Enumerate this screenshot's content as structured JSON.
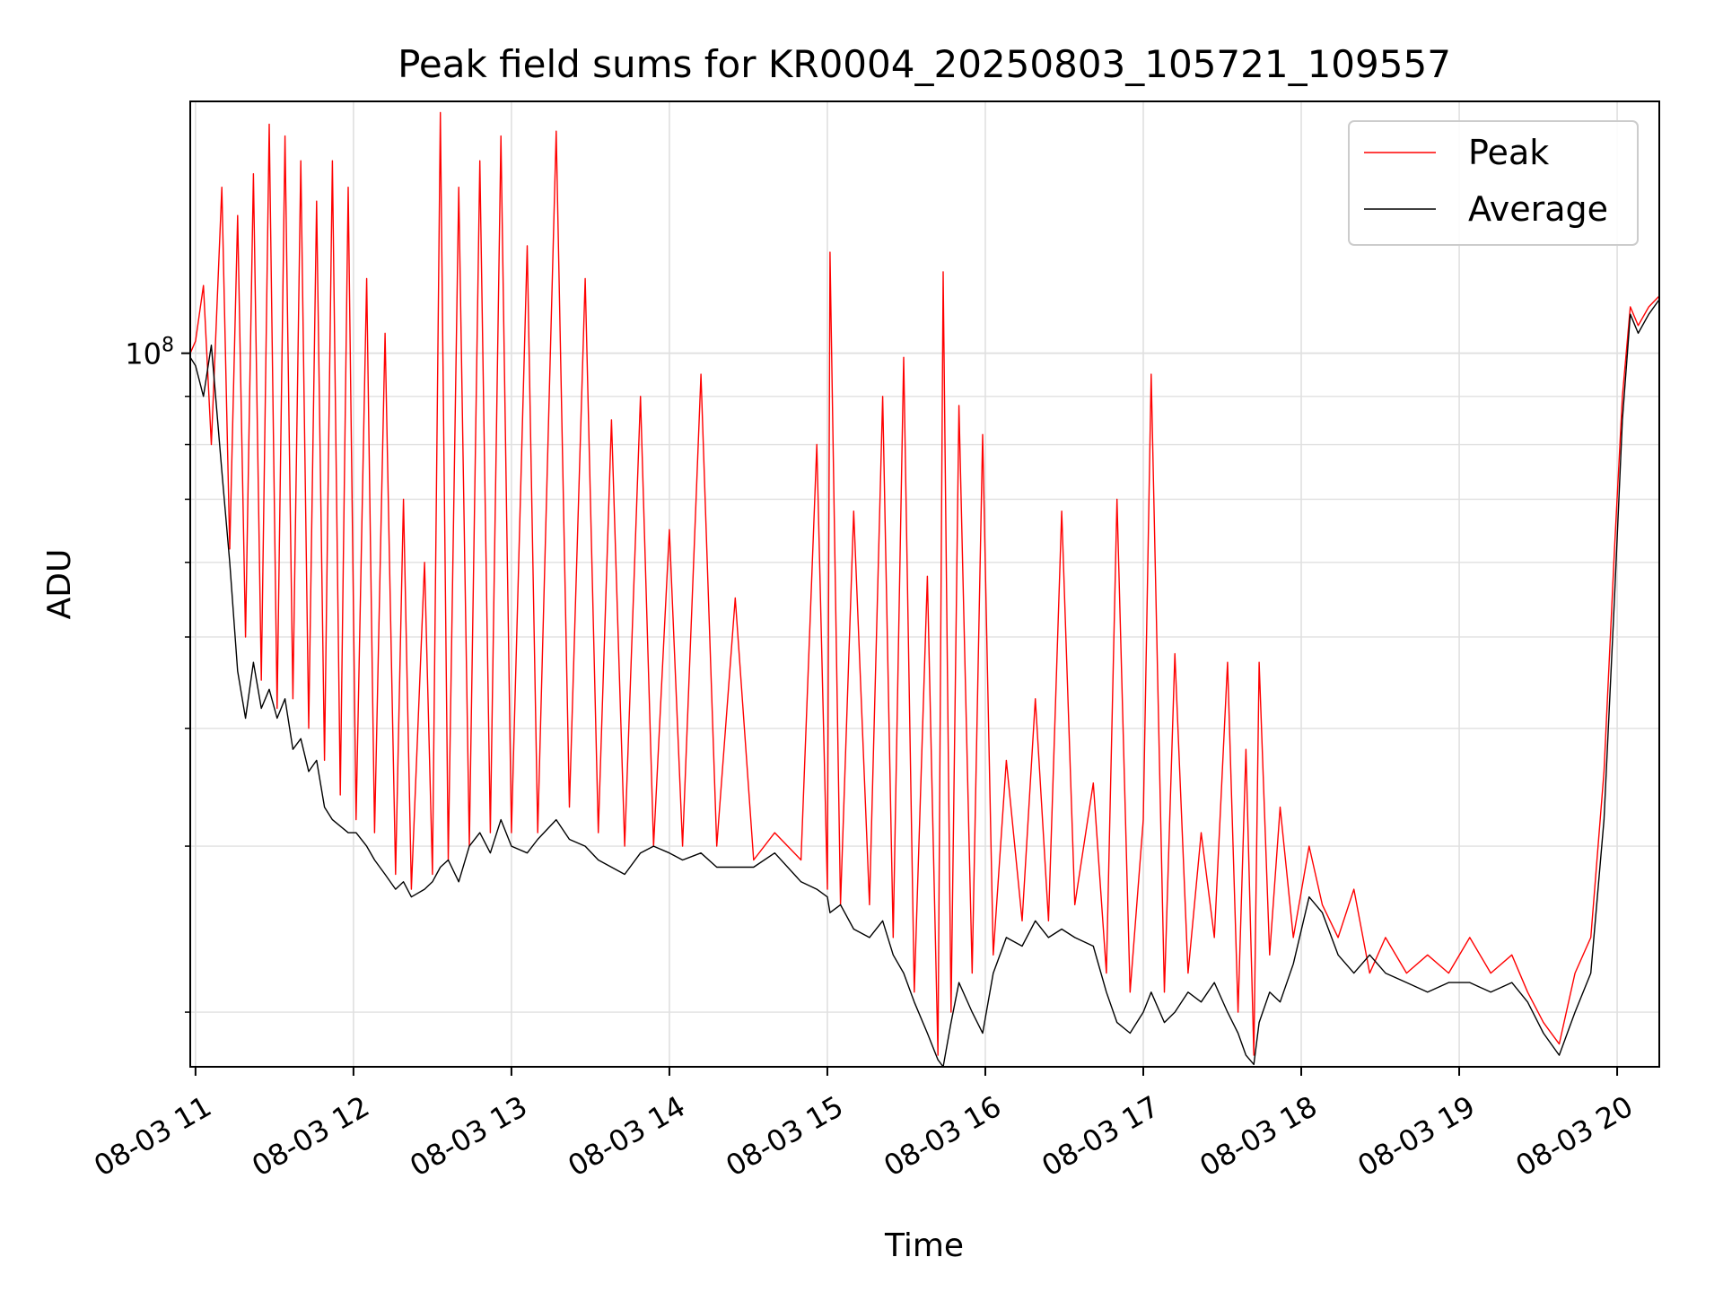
{
  "chart_data": {
    "type": "line",
    "title": "Peak field sums for KR0004_20250803_105721_109557",
    "xlabel": "Time",
    "ylabel": "ADU",
    "y_scale": "log",
    "ylim": [
      17500000,
      185000000
    ],
    "xlim": [
      "08-03 10:58",
      "08-03 20:16"
    ],
    "grid": true,
    "legend_position": "top-right",
    "x_ticks": [
      "08-03 11",
      "08-03 12",
      "08-03 13",
      "08-03 14",
      "08-03 15",
      "08-03 16",
      "08-03 17",
      "08-03 18",
      "08-03 19",
      "08-03 20"
    ],
    "y_tick_major_label": "10^8",
    "colors": {
      "peak": "#ff0000",
      "average": "#000000",
      "grid": "#e0e0e0"
    },
    "series": [
      {
        "name": "Peak",
        "points": [
          [
            "08-03 10:58",
            100000000
          ],
          [
            "08-03 11:00",
            103000000
          ],
          [
            "08-03 11:03",
            118000000
          ],
          [
            "08-03 11:06",
            80000000
          ],
          [
            "08-03 11:10",
            150000000
          ],
          [
            "08-03 11:13",
            62000000
          ],
          [
            "08-03 11:16",
            140000000
          ],
          [
            "08-03 11:19",
            50000000
          ],
          [
            "08-03 11:22",
            155000000
          ],
          [
            "08-03 11:25",
            45000000
          ],
          [
            "08-03 11:28",
            175000000
          ],
          [
            "08-03 11:31",
            42000000
          ],
          [
            "08-03 11:34",
            170000000
          ],
          [
            "08-03 11:37",
            43000000
          ],
          [
            "08-03 11:40",
            160000000
          ],
          [
            "08-03 11:43",
            40000000
          ],
          [
            "08-03 11:46",
            145000000
          ],
          [
            "08-03 11:49",
            37000000
          ],
          [
            "08-03 11:52",
            160000000
          ],
          [
            "08-03 11:55",
            34000000
          ],
          [
            "08-03 11:58",
            150000000
          ],
          [
            "08-03 12:01",
            32000000
          ],
          [
            "08-03 12:05",
            120000000
          ],
          [
            "08-03 12:08",
            31000000
          ],
          [
            "08-03 12:12",
            105000000
          ],
          [
            "08-03 12:16",
            28000000
          ],
          [
            "08-03 12:19",
            70000000
          ],
          [
            "08-03 12:22",
            27000000
          ],
          [
            "08-03 12:27",
            60000000
          ],
          [
            "08-03 12:30",
            28000000
          ],
          [
            "08-03 12:33",
            180000000
          ],
          [
            "08-03 12:36",
            29000000
          ],
          [
            "08-03 12:40",
            150000000
          ],
          [
            "08-03 12:44",
            30000000
          ],
          [
            "08-03 12:48",
            160000000
          ],
          [
            "08-03 12:52",
            31000000
          ],
          [
            "08-03 12:56",
            170000000
          ],
          [
            "08-03 13:00",
            31000000
          ],
          [
            "08-03 13:06",
            130000000
          ],
          [
            "08-03 13:10",
            31000000
          ],
          [
            "08-03 13:17",
            172000000
          ],
          [
            "08-03 13:22",
            33000000
          ],
          [
            "08-03 13:28",
            120000000
          ],
          [
            "08-03 13:33",
            31000000
          ],
          [
            "08-03 13:38",
            85000000
          ],
          [
            "08-03 13:43",
            30000000
          ],
          [
            "08-03 13:49",
            90000000
          ],
          [
            "08-03 13:54",
            30000000
          ],
          [
            "08-03 14:00",
            65000000
          ],
          [
            "08-03 14:05",
            30000000
          ],
          [
            "08-03 14:12",
            95000000
          ],
          [
            "08-03 14:18",
            30000000
          ],
          [
            "08-03 14:25",
            55000000
          ],
          [
            "08-03 14:32",
            29000000
          ],
          [
            "08-03 14:40",
            31000000
          ],
          [
            "08-03 14:50",
            29000000
          ],
          [
            "08-03 14:56",
            80000000
          ],
          [
            "08-03 15:00",
            27000000
          ],
          [
            "08-03 15:01",
            128000000
          ],
          [
            "08-03 15:05",
            26000000
          ],
          [
            "08-03 15:10",
            68000000
          ],
          [
            "08-03 15:16",
            26000000
          ],
          [
            "08-03 15:21",
            90000000
          ],
          [
            "08-03 15:25",
            24000000
          ],
          [
            "08-03 15:29",
            99000000
          ],
          [
            "08-03 15:33",
            21000000
          ],
          [
            "08-03 15:38",
            58000000
          ],
          [
            "08-03 15:42",
            18000000
          ],
          [
            "08-03 15:44",
            122000000
          ],
          [
            "08-03 15:47",
            20000000
          ],
          [
            "08-03 15:50",
            88000000
          ],
          [
            "08-03 15:55",
            22000000
          ],
          [
            "08-03 15:59",
            82000000
          ],
          [
            "08-03 16:03",
            23000000
          ],
          [
            "08-03 16:08",
            37000000
          ],
          [
            "08-03 16:14",
            25000000
          ],
          [
            "08-03 16:19",
            43000000
          ],
          [
            "08-03 16:24",
            25000000
          ],
          [
            "08-03 16:29",
            68000000
          ],
          [
            "08-03 16:34",
            26000000
          ],
          [
            "08-03 16:41",
            35000000
          ],
          [
            "08-03 16:46",
            22000000
          ],
          [
            "08-03 16:50",
            70000000
          ],
          [
            "08-03 16:55",
            21000000
          ],
          [
            "08-03 17:00",
            32000000
          ],
          [
            "08-03 17:03",
            95000000
          ],
          [
            "08-03 17:08",
            21000000
          ],
          [
            "08-03 17:12",
            48000000
          ],
          [
            "08-03 17:17",
            22000000
          ],
          [
            "08-03 17:22",
            31000000
          ],
          [
            "08-03 17:27",
            24000000
          ],
          [
            "08-03 17:32",
            47000000
          ],
          [
            "08-03 17:36",
            20000000
          ],
          [
            "08-03 17:39",
            38000000
          ],
          [
            "08-03 17:42",
            18000000
          ],
          [
            "08-03 17:44",
            47000000
          ],
          [
            "08-03 17:48",
            23000000
          ],
          [
            "08-03 17:52",
            33000000
          ],
          [
            "08-03 17:57",
            24000000
          ],
          [
            "08-03 18:03",
            30000000
          ],
          [
            "08-03 18:08",
            26000000
          ],
          [
            "08-03 18:14",
            24000000
          ],
          [
            "08-03 18:20",
            27000000
          ],
          [
            "08-03 18:26",
            22000000
          ],
          [
            "08-03 18:32",
            24000000
          ],
          [
            "08-03 18:40",
            22000000
          ],
          [
            "08-03 18:48",
            23000000
          ],
          [
            "08-03 18:56",
            22000000
          ],
          [
            "08-03 19:04",
            24000000
          ],
          [
            "08-03 19:12",
            22000000
          ],
          [
            "08-03 19:20",
            23000000
          ],
          [
            "08-03 19:26",
            21000000
          ],
          [
            "08-03 19:32",
            19500000
          ],
          [
            "08-03 19:38",
            18500000
          ],
          [
            "08-03 19:44",
            22000000
          ],
          [
            "08-03 19:50",
            24000000
          ],
          [
            "08-03 19:55",
            36000000
          ],
          [
            "08-03 19:59",
            62000000
          ],
          [
            "08-03 20:02",
            90000000
          ],
          [
            "08-03 20:05",
            112000000
          ],
          [
            "08-03 20:08",
            107000000
          ],
          [
            "08-03 20:12",
            112000000
          ],
          [
            "08-03 20:16",
            115000000
          ]
        ]
      },
      {
        "name": "Average",
        "points": [
          [
            "08-03 10:58",
            99000000
          ],
          [
            "08-03 11:00",
            97000000
          ],
          [
            "08-03 11:03",
            90000000
          ],
          [
            "08-03 11:06",
            102000000
          ],
          [
            "08-03 11:10",
            75000000
          ],
          [
            "08-03 11:13",
            60000000
          ],
          [
            "08-03 11:16",
            46000000
          ],
          [
            "08-03 11:19",
            41000000
          ],
          [
            "08-03 11:22",
            47000000
          ],
          [
            "08-03 11:25",
            42000000
          ],
          [
            "08-03 11:28",
            44000000
          ],
          [
            "08-03 11:31",
            41000000
          ],
          [
            "08-03 11:34",
            43000000
          ],
          [
            "08-03 11:37",
            38000000
          ],
          [
            "08-03 11:40",
            39000000
          ],
          [
            "08-03 11:43",
            36000000
          ],
          [
            "08-03 11:46",
            37000000
          ],
          [
            "08-03 11:49",
            33000000
          ],
          [
            "08-03 11:52",
            32000000
          ],
          [
            "08-03 11:55",
            31500000
          ],
          [
            "08-03 11:58",
            31000000
          ],
          [
            "08-03 12:01",
            31000000
          ],
          [
            "08-03 12:05",
            30000000
          ],
          [
            "08-03 12:08",
            29000000
          ],
          [
            "08-03 12:12",
            28000000
          ],
          [
            "08-03 12:16",
            27000000
          ],
          [
            "08-03 12:19",
            27500000
          ],
          [
            "08-03 12:22",
            26500000
          ],
          [
            "08-03 12:27",
            27000000
          ],
          [
            "08-03 12:30",
            27500000
          ],
          [
            "08-03 12:33",
            28500000
          ],
          [
            "08-03 12:36",
            29000000
          ],
          [
            "08-03 12:40",
            27500000
          ],
          [
            "08-03 12:44",
            30000000
          ],
          [
            "08-03 12:48",
            31000000
          ],
          [
            "08-03 12:52",
            29500000
          ],
          [
            "08-03 12:56",
            32000000
          ],
          [
            "08-03 13:00",
            30000000
          ],
          [
            "08-03 13:06",
            29500000
          ],
          [
            "08-03 13:10",
            30500000
          ],
          [
            "08-03 13:17",
            32000000
          ],
          [
            "08-03 13:22",
            30500000
          ],
          [
            "08-03 13:28",
            30000000
          ],
          [
            "08-03 13:33",
            29000000
          ],
          [
            "08-03 13:38",
            28500000
          ],
          [
            "08-03 13:43",
            28000000
          ],
          [
            "08-03 13:49",
            29500000
          ],
          [
            "08-03 13:54",
            30000000
          ],
          [
            "08-03 14:00",
            29500000
          ],
          [
            "08-03 14:05",
            29000000
          ],
          [
            "08-03 14:12",
            29500000
          ],
          [
            "08-03 14:18",
            28500000
          ],
          [
            "08-03 14:25",
            28500000
          ],
          [
            "08-03 14:32",
            28500000
          ],
          [
            "08-03 14:40",
            29500000
          ],
          [
            "08-03 14:50",
            27500000
          ],
          [
            "08-03 14:56",
            27000000
          ],
          [
            "08-03 15:00",
            26500000
          ],
          [
            "08-03 15:01",
            25500000
          ],
          [
            "08-03 15:05",
            26000000
          ],
          [
            "08-03 15:10",
            24500000
          ],
          [
            "08-03 15:16",
            24000000
          ],
          [
            "08-03 15:21",
            25000000
          ],
          [
            "08-03 15:25",
            23000000
          ],
          [
            "08-03 15:29",
            22000000
          ],
          [
            "08-03 15:33",
            20500000
          ],
          [
            "08-03 15:38",
            19000000
          ],
          [
            "08-03 15:42",
            17800000
          ],
          [
            "08-03 15:44",
            17500000
          ],
          [
            "08-03 15:47",
            19500000
          ],
          [
            "08-03 15:50",
            21500000
          ],
          [
            "08-03 15:55",
            20000000
          ],
          [
            "08-03 15:59",
            19000000
          ],
          [
            "08-03 16:03",
            22000000
          ],
          [
            "08-03 16:08",
            24000000
          ],
          [
            "08-03 16:14",
            23500000
          ],
          [
            "08-03 16:19",
            25000000
          ],
          [
            "08-03 16:24",
            24000000
          ],
          [
            "08-03 16:29",
            24500000
          ],
          [
            "08-03 16:34",
            24000000
          ],
          [
            "08-03 16:41",
            23500000
          ],
          [
            "08-03 16:46",
            21000000
          ],
          [
            "08-03 16:50",
            19500000
          ],
          [
            "08-03 16:55",
            19000000
          ],
          [
            "08-03 17:00",
            20000000
          ],
          [
            "08-03 17:03",
            21000000
          ],
          [
            "08-03 17:08",
            19500000
          ],
          [
            "08-03 17:12",
            20000000
          ],
          [
            "08-03 17:17",
            21000000
          ],
          [
            "08-03 17:22",
            20500000
          ],
          [
            "08-03 17:27",
            21500000
          ],
          [
            "08-03 17:32",
            20000000
          ],
          [
            "08-03 17:36",
            19000000
          ],
          [
            "08-03 17:39",
            18000000
          ],
          [
            "08-03 17:42",
            17600000
          ],
          [
            "08-03 17:44",
            19500000
          ],
          [
            "08-03 17:48",
            21000000
          ],
          [
            "08-03 17:52",
            20500000
          ],
          [
            "08-03 17:57",
            22500000
          ],
          [
            "08-03 18:03",
            26500000
          ],
          [
            "08-03 18:08",
            25500000
          ],
          [
            "08-03 18:14",
            23000000
          ],
          [
            "08-03 18:20",
            22000000
          ],
          [
            "08-03 18:26",
            23000000
          ],
          [
            "08-03 18:32",
            22000000
          ],
          [
            "08-03 18:40",
            21500000
          ],
          [
            "08-03 18:48",
            21000000
          ],
          [
            "08-03 18:56",
            21500000
          ],
          [
            "08-03 19:04",
            21500000
          ],
          [
            "08-03 19:12",
            21000000
          ],
          [
            "08-03 19:20",
            21500000
          ],
          [
            "08-03 19:26",
            20500000
          ],
          [
            "08-03 19:32",
            19000000
          ],
          [
            "08-03 19:38",
            18000000
          ],
          [
            "08-03 19:44",
            20000000
          ],
          [
            "08-03 19:50",
            22000000
          ],
          [
            "08-03 19:55",
            32000000
          ],
          [
            "08-03 19:59",
            55000000
          ],
          [
            "08-03 20:02",
            85000000
          ],
          [
            "08-03 20:05",
            110000000
          ],
          [
            "08-03 20:08",
            105000000
          ],
          [
            "08-03 20:12",
            110000000
          ],
          [
            "08-03 20:16",
            114000000
          ]
        ]
      }
    ]
  }
}
